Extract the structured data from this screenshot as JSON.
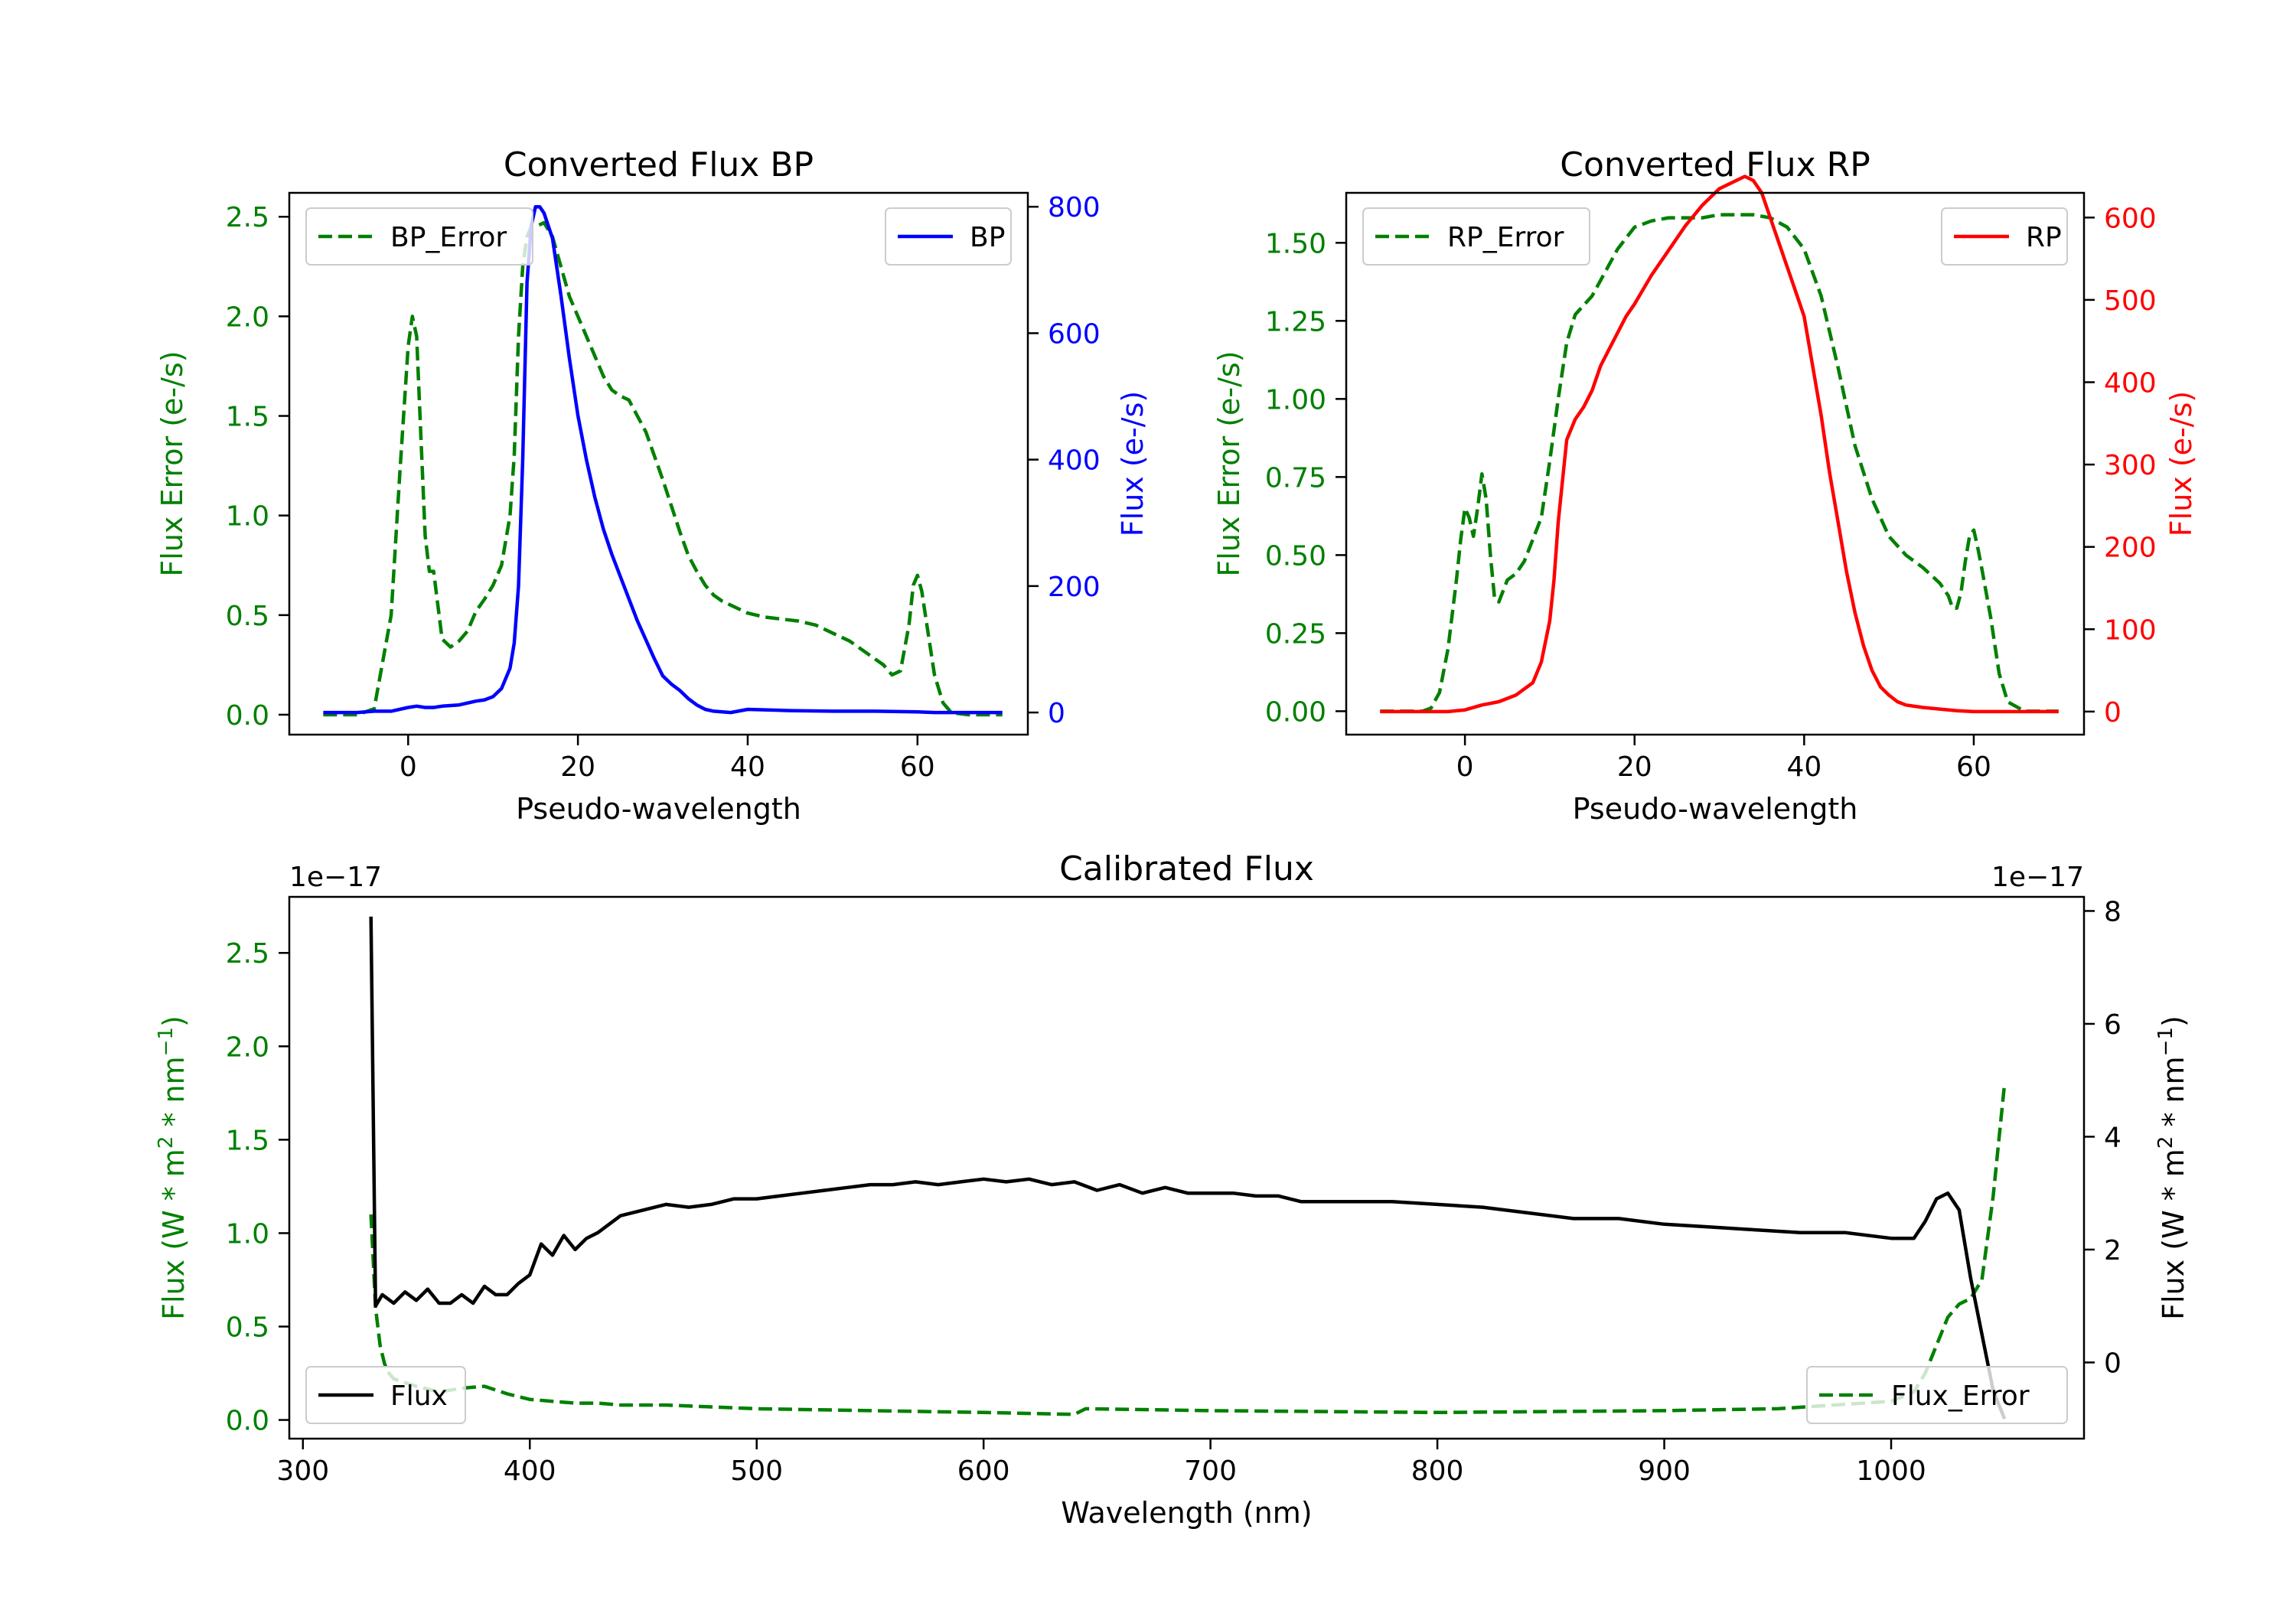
{
  "figure": {
    "colors": {
      "green": "#008000",
      "blue": "#0000ff",
      "red": "#ff0000",
      "black": "#000000"
    }
  },
  "chart_data": [
    {
      "id": "bp",
      "type": "line",
      "title": "Converted Flux BP",
      "xlabel": "Pseudo-wavelength",
      "ylabel_left": "Flux Error (e-/s)",
      "ylabel_right": "Flux (e-/s)",
      "xlim": [
        -14,
        73
      ],
      "ylim_left": [
        -0.1,
        2.62
      ],
      "ylim_right": [
        -35,
        822
      ],
      "xticks": [
        0,
        20,
        40,
        60
      ],
      "yticks_left": [
        0.0,
        0.5,
        1.0,
        1.5,
        2.0,
        2.5
      ],
      "yticks_left_labels": [
        "0.0",
        "0.5",
        "1.0",
        "1.5",
        "2.0",
        "2.5"
      ],
      "yticks_right": [
        0,
        200,
        400,
        600,
        800
      ],
      "yticks_right_labels": [
        "0",
        "200",
        "400",
        "600",
        "800"
      ],
      "right_color": "#0000ff",
      "legend_left": {
        "label": "BP_Error",
        "location": "upper left"
      },
      "legend_right": {
        "label": "BP",
        "location": "upper right"
      },
      "series": [
        {
          "name": "BP_Error",
          "axis": "left",
          "style": "dashed",
          "color": "#008000",
          "x": [
            -10,
            -6,
            -4,
            -2,
            -1,
            0,
            0.5,
            1,
            1.5,
            2,
            2.5,
            3,
            3.5,
            4,
            5,
            6,
            7,
            8,
            9,
            10,
            11,
            12,
            12.5,
            13,
            13.5,
            14,
            14.5,
            15,
            16,
            17,
            18,
            19,
            20,
            21,
            22,
            23,
            24,
            25,
            26,
            27,
            28,
            29,
            30,
            31,
            32,
            33,
            34,
            35,
            36,
            37,
            38,
            39,
            40,
            42,
            44,
            46,
            48,
            50,
            52,
            54,
            56,
            57,
            58,
            59,
            59.5,
            60,
            60.5,
            61,
            62,
            63,
            64,
            66,
            68,
            70
          ],
          "values": [
            0.0,
            0.0,
            0.03,
            0.5,
            1.2,
            1.85,
            2.0,
            1.9,
            1.4,
            0.9,
            0.72,
            0.72,
            0.55,
            0.38,
            0.34,
            0.37,
            0.42,
            0.52,
            0.58,
            0.65,
            0.75,
            1.0,
            1.3,
            1.9,
            2.25,
            2.4,
            2.45,
            2.45,
            2.47,
            2.4,
            2.25,
            2.1,
            2.0,
            1.9,
            1.8,
            1.7,
            1.63,
            1.6,
            1.58,
            1.5,
            1.42,
            1.3,
            1.18,
            1.05,
            0.92,
            0.8,
            0.72,
            0.65,
            0.6,
            0.57,
            0.55,
            0.53,
            0.51,
            0.49,
            0.48,
            0.47,
            0.45,
            0.41,
            0.37,
            0.31,
            0.25,
            0.2,
            0.22,
            0.45,
            0.65,
            0.7,
            0.62,
            0.48,
            0.2,
            0.06,
            0.01,
            0.0,
            0.0,
            0.0
          ]
        },
        {
          "name": "BP",
          "axis": "right",
          "style": "solid",
          "color": "#0000ff",
          "x": [
            -10,
            -8,
            -6,
            -4,
            -2,
            0,
            1,
            2,
            3,
            4,
            6,
            8,
            9,
            10,
            11,
            12,
            12.5,
            13,
            13.5,
            14,
            14.5,
            15,
            15.5,
            16,
            17,
            18,
            19,
            20,
            21,
            22,
            23,
            24,
            25,
            26,
            27,
            28,
            29,
            30,
            31,
            32,
            33,
            34,
            35,
            36,
            37,
            38,
            40,
            45,
            50,
            55,
            60,
            62,
            65,
            70
          ],
          "values": [
            0,
            0,
            0,
            2,
            2,
            8,
            10,
            8,
            8,
            10,
            12,
            18,
            20,
            25,
            38,
            70,
            110,
            200,
            400,
            680,
            770,
            800,
            800,
            790,
            750,
            660,
            560,
            470,
            400,
            340,
            290,
            250,
            215,
            180,
            145,
            115,
            85,
            58,
            45,
            35,
            22,
            12,
            5,
            2,
            1,
            0,
            5,
            3,
            2,
            2,
            1,
            0,
            0,
            0
          ]
        }
      ]
    },
    {
      "id": "rp",
      "type": "line",
      "title": "Converted Flux RP",
      "xlabel": "Pseudo-wavelength",
      "ylabel_left": "Flux Error (e-/s)",
      "ylabel_right": "Flux (e-/s)",
      "xlim": [
        -14,
        73
      ],
      "ylim_left": [
        -0.075,
        1.66
      ],
      "ylim_right": [
        -28,
        630
      ],
      "xticks": [
        0,
        20,
        40,
        60
      ],
      "yticks_left": [
        0.0,
        0.25,
        0.5,
        0.75,
        1.0,
        1.25,
        1.5
      ],
      "yticks_left_labels": [
        "0.00",
        "0.25",
        "0.50",
        "0.75",
        "1.00",
        "1.25",
        "1.50"
      ],
      "yticks_right": [
        0,
        100,
        200,
        300,
        400,
        500,
        600
      ],
      "yticks_right_labels": [
        "0",
        "100",
        "200",
        "300",
        "400",
        "500",
        "600"
      ],
      "right_color": "#ff0000",
      "legend_left": {
        "label": "RP_Error",
        "location": "upper left"
      },
      "legend_right": {
        "label": "RP",
        "location": "upper right"
      },
      "series": [
        {
          "name": "RP_Error",
          "axis": "left",
          "style": "dashed",
          "color": "#008000",
          "x": [
            -10,
            -5,
            -4,
            -3,
            -2,
            -1,
            -0.5,
            0,
            0.5,
            1,
            1.5,
            2,
            2.5,
            3,
            3.5,
            4,
            5,
            6,
            7,
            8,
            9,
            10,
            11,
            12,
            13,
            14,
            15,
            16,
            18,
            20,
            22,
            24,
            26,
            28,
            30,
            32,
            34,
            36,
            38,
            40,
            42,
            44,
            46,
            48,
            50,
            52,
            54,
            56,
            57,
            57.5,
            58,
            58.5,
            59,
            59.5,
            60,
            60.5,
            61,
            62,
            63,
            64,
            66,
            68,
            70
          ],
          "values": [
            0.0,
            0.0,
            0.01,
            0.06,
            0.2,
            0.42,
            0.55,
            0.65,
            0.62,
            0.56,
            0.65,
            0.76,
            0.68,
            0.5,
            0.36,
            0.35,
            0.42,
            0.44,
            0.48,
            0.55,
            0.62,
            0.8,
            1.0,
            1.18,
            1.27,
            1.3,
            1.33,
            1.38,
            1.48,
            1.55,
            1.57,
            1.58,
            1.58,
            1.58,
            1.59,
            1.59,
            1.59,
            1.58,
            1.55,
            1.48,
            1.33,
            1.1,
            0.85,
            0.68,
            0.56,
            0.5,
            0.46,
            0.41,
            0.37,
            0.33,
            0.33,
            0.38,
            0.48,
            0.56,
            0.58,
            0.52,
            0.45,
            0.3,
            0.12,
            0.03,
            0.0,
            0.0,
            0.0
          ]
        },
        {
          "name": "RP",
          "axis": "right",
          "style": "solid",
          "color": "#ff0000",
          "x": [
            -10,
            -4,
            -2,
            0,
            2,
            4,
            6,
            8,
            9,
            10,
            10.5,
            11,
            12,
            13,
            14,
            15,
            16,
            17,
            18,
            19,
            20,
            22,
            24,
            26,
            28,
            30,
            32,
            33,
            34,
            35,
            36,
            37,
            38,
            39,
            40,
            41,
            42,
            43,
            44,
            45,
            46,
            47,
            48,
            49,
            50,
            51,
            52,
            54,
            56,
            58,
            60,
            62,
            64,
            66,
            68,
            70
          ],
          "values": [
            0,
            0,
            0,
            2,
            8,
            12,
            20,
            35,
            60,
            110,
            160,
            230,
            330,
            355,
            370,
            390,
            420,
            440,
            460,
            480,
            495,
            530,
            560,
            590,
            615,
            635,
            645,
            650,
            645,
            630,
            600,
            570,
            540,
            510,
            480,
            420,
            360,
            290,
            230,
            170,
            120,
            80,
            50,
            30,
            20,
            12,
            8,
            5,
            3,
            1,
            0,
            0,
            0,
            0,
            0,
            0
          ]
        }
      ]
    },
    {
      "id": "calibrated",
      "type": "line",
      "title": "Calibrated Flux",
      "xlabel": "Wavelength (nm)",
      "ylabel_left": "Flux (W * m2 * nm−1)",
      "ylabel_right": "Flux (W * m2 * nm−1)",
      "offset_left": "1e−17",
      "offset_right": "1e−17",
      "xlim": [
        294,
        1085
      ],
      "ylim_left": [
        -0.1,
        2.8
      ],
      "ylim_right": [
        -1.35,
        8.25
      ],
      "xticks": [
        300,
        400,
        500,
        600,
        700,
        800,
        900,
        1000
      ],
      "yticks_left": [
        0.0,
        0.5,
        1.0,
        1.5,
        2.0,
        2.5
      ],
      "yticks_left_labels": [
        "0.0",
        "0.5",
        "1.0",
        "1.5",
        "2.0",
        "2.5"
      ],
      "yticks_right": [
        0,
        2,
        4,
        6,
        8
      ],
      "yticks_right_labels": [
        "0",
        "2",
        "4",
        "6",
        "8"
      ],
      "right_color": "#000000",
      "legend_left": {
        "label": "Flux",
        "location": "lower left"
      },
      "legend_right": {
        "label": "Flux_Error",
        "location": "lower right"
      },
      "series": [
        {
          "name": "Flux_Error",
          "axis": "left",
          "style": "dashed",
          "color": "#008000",
          "x": [
            330,
            332,
            334,
            336,
            338,
            340,
            345,
            350,
            360,
            370,
            380,
            390,
            400,
            410,
            420,
            430,
            440,
            460,
            480,
            500,
            550,
            600,
            640,
            645,
            700,
            800,
            900,
            950,
            1000,
            1010,
            1015,
            1020,
            1025,
            1030,
            1035,
            1040,
            1045,
            1050
          ],
          "values": [
            1.1,
            0.6,
            0.4,
            0.3,
            0.25,
            0.22,
            0.2,
            0.18,
            0.15,
            0.17,
            0.18,
            0.14,
            0.11,
            0.1,
            0.09,
            0.09,
            0.08,
            0.08,
            0.07,
            0.06,
            0.05,
            0.04,
            0.03,
            0.06,
            0.05,
            0.04,
            0.05,
            0.06,
            0.1,
            0.15,
            0.25,
            0.4,
            0.55,
            0.62,
            0.65,
            0.75,
            1.2,
            1.8
          ]
        },
        {
          "name": "Flux",
          "axis": "right",
          "style": "solid",
          "color": "#000000",
          "x": [
            330,
            332,
            335,
            340,
            345,
            350,
            355,
            360,
            365,
            370,
            375,
            380,
            385,
            390,
            395,
            400,
            405,
            410,
            415,
            420,
            425,
            430,
            440,
            450,
            460,
            470,
            480,
            490,
            500,
            510,
            520,
            530,
            540,
            550,
            560,
            570,
            580,
            590,
            600,
            610,
            620,
            630,
            640,
            650,
            660,
            670,
            680,
            690,
            700,
            710,
            720,
            730,
            740,
            750,
            760,
            780,
            800,
            820,
            840,
            860,
            880,
            900,
            920,
            940,
            960,
            980,
            1000,
            1010,
            1015,
            1020,
            1025,
            1030,
            1035,
            1040,
            1045,
            1050
          ],
          "values": [
            7.9,
            1.0,
            1.2,
            1.05,
            1.25,
            1.1,
            1.3,
            1.05,
            1.05,
            1.2,
            1.05,
            1.35,
            1.2,
            1.2,
            1.4,
            1.55,
            2.1,
            1.9,
            2.25,
            2.0,
            2.2,
            2.3,
            2.6,
            2.7,
            2.8,
            2.75,
            2.8,
            2.9,
            2.9,
            2.95,
            3.0,
            3.05,
            3.1,
            3.15,
            3.15,
            3.2,
            3.15,
            3.2,
            3.25,
            3.2,
            3.25,
            3.15,
            3.2,
            3.05,
            3.15,
            3.0,
            3.1,
            3.0,
            3.0,
            3.0,
            2.95,
            2.95,
            2.85,
            2.85,
            2.85,
            2.85,
            2.8,
            2.75,
            2.65,
            2.55,
            2.55,
            2.45,
            2.4,
            2.35,
            2.3,
            2.3,
            2.2,
            2.2,
            2.5,
            2.9,
            3.0,
            2.7,
            1.5,
            0.5,
            -0.5,
            -1.0
          ]
        }
      ]
    }
  ]
}
